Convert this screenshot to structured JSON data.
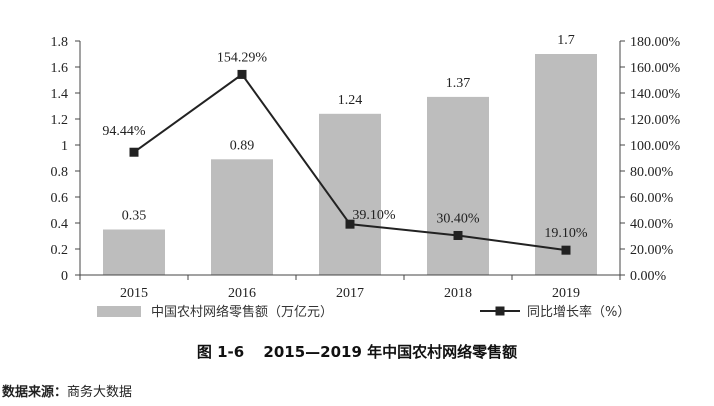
{
  "colors": {
    "bar": "#bdbdbd",
    "line": "#222222",
    "axis": "#444444"
  },
  "caption": {
    "figure_no": "图 1-6",
    "title": "2015—2019 年中国农村网络零售额"
  },
  "source": {
    "label": "数据来源：",
    "value": "商务大数据"
  },
  "chart_data": {
    "type": "bar",
    "categories": [
      "2015",
      "2016",
      "2017",
      "2018",
      "2019"
    ],
    "series": [
      {
        "name": "中国农村网络零售额（万亿元）",
        "type": "bar",
        "axis": "left",
        "values": [
          0.35,
          0.89,
          1.24,
          1.37,
          1.7
        ],
        "labels": [
          "0.35",
          "0.89",
          "1.24",
          "1.37",
          "1.7"
        ]
      },
      {
        "name": "同比增长率（%）",
        "type": "line",
        "axis": "right",
        "marker": "square",
        "values": [
          94.44,
          154.29,
          39.1,
          30.4,
          19.1
        ],
        "labels": [
          "94.44%",
          "154.29%",
          "39.10%",
          "30.40%",
          "19.10%"
        ]
      }
    ],
    "y_left": {
      "ylim": [
        0,
        1.8
      ],
      "ticks": [
        0,
        0.2,
        0.4,
        0.6,
        0.8,
        1,
        1.2,
        1.4,
        1.6,
        1.8
      ],
      "tick_labels": [
        "0",
        "0.2",
        "0.4",
        "0.6",
        "0.8",
        "1",
        "1.2",
        "1.4",
        "1.6",
        "1.8"
      ]
    },
    "y_right": {
      "ylim": [
        0,
        180
      ],
      "ticks": [
        0,
        20,
        40,
        60,
        80,
        100,
        120,
        140,
        160,
        180
      ],
      "tick_labels": [
        "0.00%",
        "20.00%",
        "40.00%",
        "60.00%",
        "80.00%",
        "100.00%",
        "120.00%",
        "140.00%",
        "160.00%",
        "180.00%"
      ]
    },
    "grid": false,
    "legend": "bottom"
  }
}
